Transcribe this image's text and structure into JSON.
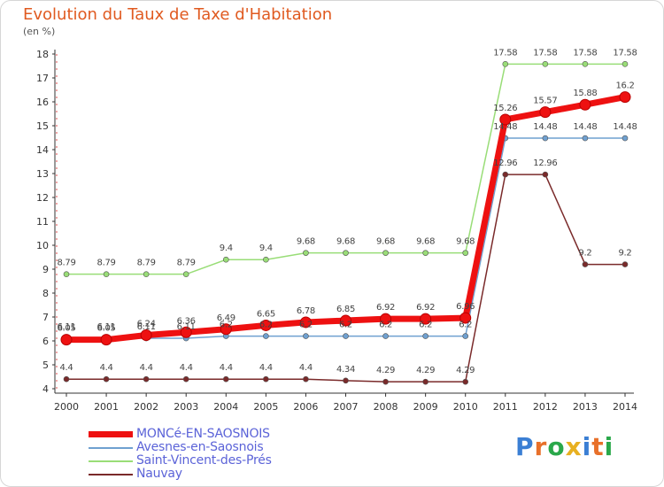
{
  "title": "Evolution du Taux de Taxe d'Habitation",
  "subtitle": "(en %)",
  "logo": {
    "text": "Proxiti",
    "colors": [
      "#3b7fd4",
      "#e8702a",
      "#2aa84a",
      "#e8b020",
      "#3b7fd4",
      "#e8702a",
      "#2aa84a"
    ]
  },
  "chart_data": {
    "type": "line",
    "x": [
      "2000",
      "2001",
      "2002",
      "2003",
      "2004",
      "2005",
      "2006",
      "2007",
      "2008",
      "2009",
      "2010",
      "2011",
      "2012",
      "2013",
      "2014"
    ],
    "ylim": [
      4,
      18
    ],
    "yticks": [
      "4",
      "5",
      "6",
      "7",
      "8",
      "9",
      "10",
      "11",
      "12",
      "13",
      "14",
      "15",
      "16",
      "17",
      "18"
    ],
    "grid": false,
    "legend_position": "bottom-left",
    "series": [
      {
        "name": "MONCé-EN-SAOSNOIS",
        "color": "#ee1111",
        "emphasis": true,
        "values": [
          6.05,
          6.05,
          6.24,
          6.36,
          6.49,
          6.65,
          6.78,
          6.85,
          6.92,
          6.92,
          6.96,
          15.26,
          15.57,
          15.88,
          16.2
        ],
        "labels": [
          "6.05",
          "6.05",
          "6.24",
          "6.36",
          "6.49",
          "6.65",
          "6.78",
          "6.85",
          "6.92",
          "6.92",
          "6.96",
          "15.26",
          "15.57",
          "15.88",
          "16.2"
        ]
      },
      {
        "name": "Avesnes-en-Saosnois",
        "color": "#6fa0d0",
        "emphasis": false,
        "values": [
          6.11,
          6.11,
          6.11,
          6.11,
          6.2,
          6.2,
          6.2,
          6.2,
          6.2,
          6.2,
          6.2,
          14.48,
          14.48,
          14.48,
          14.48
        ],
        "labels": [
          "6.11",
          "6.11",
          "6.11",
          "6.11",
          "6.2",
          "6.2",
          "6.2",
          "6.2",
          "6.2",
          "6.2",
          "6.2",
          "14.48",
          "14.48",
          "14.48",
          "14.48"
        ]
      },
      {
        "name": "Saint-Vincent-des-Prés",
        "color": "#99dd77",
        "emphasis": false,
        "values": [
          8.79,
          8.79,
          8.79,
          8.79,
          9.4,
          9.4,
          9.68,
          9.68,
          9.68,
          9.68,
          9.68,
          17.58,
          17.58,
          17.58,
          17.58
        ],
        "labels": [
          "8.79",
          "8.79",
          "8.79",
          "8.79",
          "9.4",
          "9.4",
          "9.68",
          "9.68",
          "9.68",
          "9.68",
          "9.68",
          "17.58",
          "17.58",
          "17.58",
          "17.58"
        ]
      },
      {
        "name": "Nauvay",
        "color": "#7a2a2a",
        "emphasis": false,
        "values": [
          4.4,
          4.4,
          4.4,
          4.4,
          4.4,
          4.4,
          4.4,
          4.34,
          4.29,
          4.29,
          4.29,
          12.96,
          12.96,
          9.2,
          9.2
        ],
        "labels": [
          "4.4",
          "4.4",
          "4.4",
          "4.4",
          "4.4",
          "4.4",
          "4.4",
          "4.34",
          "4.29",
          "4.29",
          "4.29",
          "12.96",
          "12.96",
          "9.2",
          "9.2"
        ]
      }
    ]
  }
}
